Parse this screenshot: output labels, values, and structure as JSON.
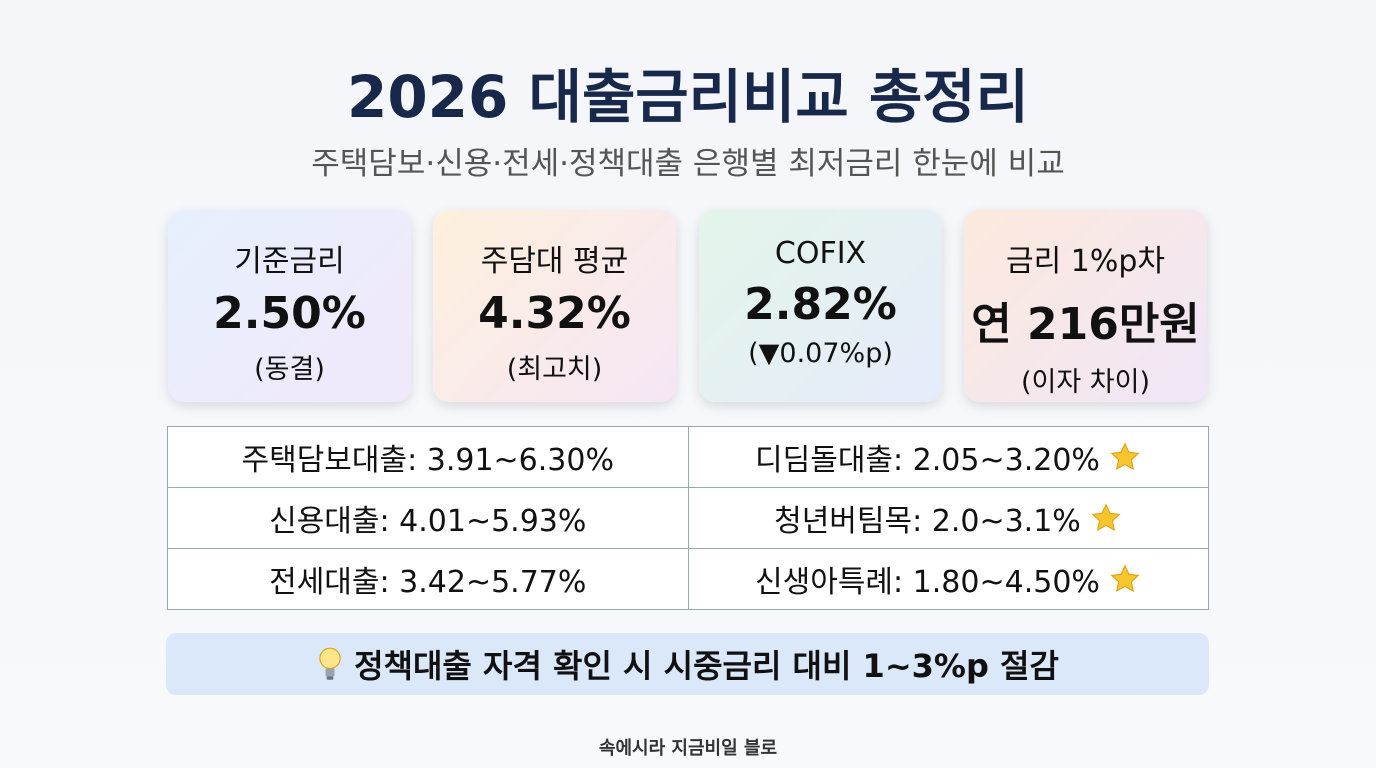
{
  "header": {
    "title": "2026 대출금리비교 총정리",
    "subtitle": "주택담보·신용·전세·정책대출 은행별 최저금리 한눈에 비교"
  },
  "cards": [
    {
      "label": "기준금리",
      "value": "2.50%",
      "note": "(동결)"
    },
    {
      "label": "주담대 평균",
      "value": "4.32%",
      "note": "(최고치)"
    },
    {
      "label": "COFIX",
      "value": "2.82%",
      "note": "(▼0.07%p)"
    },
    {
      "label": "금리 1%p차",
      "value": "연 216만원",
      "note": "(이자 차이)"
    }
  ],
  "table": {
    "rows": [
      [
        "주택담보대출: 3.91~6.30%",
        "디딤돌대출: 2.05~3.20%"
      ],
      [
        "신용대출: 4.01~5.93%",
        "청년버팀목: 2.0~3.1%"
      ],
      [
        "전세대출: 3.42~5.77%",
        "신생아특례: 1.80~4.50%"
      ]
    ]
  },
  "tip": "정책대출 자격 확인 시 시중금리 대비 1~3%p 절감",
  "footer": "속에시라 지금비일 블로"
}
